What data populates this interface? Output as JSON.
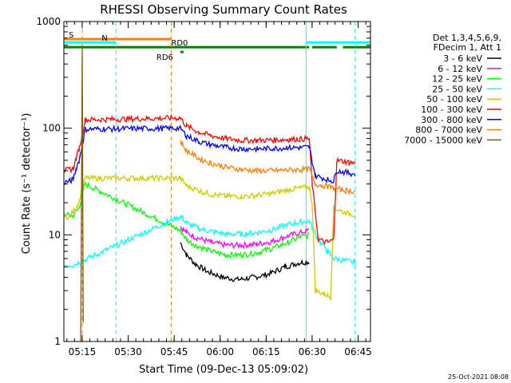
{
  "chart_data": {
    "type": "line",
    "title": "RHESSI Observing Summary Count Rates",
    "xlabel": "Start Time (09-Dec-13 05:09:02)",
    "ylabel": "Count Rate (s⁻¹ detector⁻¹)",
    "yscale": "log",
    "ylim": [
      1,
      1000
    ],
    "xlim_minutes": [
      0,
      100
    ],
    "x_tick_labels": [
      "05:15",
      "05:30",
      "05:45",
      "06:00",
      "06:15",
      "06:30",
      "06:45"
    ],
    "x_tick_minutes": [
      5.97,
      20.97,
      35.97,
      50.97,
      65.97,
      80.97,
      95.97
    ],
    "y_tick_labels": [
      "1",
      "10",
      "100",
      "1000"
    ],
    "y_tick_values": [
      1,
      10,
      100,
      1000
    ],
    "legend_header": [
      "Det 1,3,4,5,6,9,",
      "FDecim 1, Att 1"
    ],
    "legend_position": "right",
    "timestamp": "25-Oct-2021 08:08",
    "series": [
      {
        "name": "3 - 6 keV",
        "color": "#000000",
        "points": [
          [
            38,
            8.5
          ],
          [
            40,
            6.5
          ],
          [
            43,
            5.3
          ],
          [
            47,
            4.5
          ],
          [
            52,
            4.0
          ],
          [
            57,
            3.8
          ],
          [
            62,
            4.0
          ],
          [
            67,
            4.3
          ],
          [
            72,
            5.0
          ],
          [
            77,
            5.5
          ],
          [
            80,
            5.6
          ]
        ]
      },
      {
        "name": "6 - 12 keV",
        "color": "#ff00ff",
        "points": [
          [
            38,
            12
          ],
          [
            40,
            10.5
          ],
          [
            43,
            9.5
          ],
          [
            48,
            8.5
          ],
          [
            53,
            8.0
          ],
          [
            58,
            8.0
          ],
          [
            63,
            8.2
          ],
          [
            68,
            8.7
          ],
          [
            73,
            9.8
          ],
          [
            77,
            10.5
          ],
          [
            80,
            11
          ]
        ]
      },
      {
        "name": "12 - 25 keV",
        "color": "#00ff00",
        "points": [
          [
            0,
            15.5
          ],
          [
            3,
            15
          ],
          [
            5,
            18
          ],
          [
            6,
            24
          ],
          [
            7,
            30
          ],
          [
            38,
            11
          ],
          [
            40,
            9
          ],
          [
            43,
            8
          ],
          [
            48,
            7
          ],
          [
            53,
            6.5
          ],
          [
            58,
            6.5
          ],
          [
            63,
            6.8
          ],
          [
            68,
            7.5
          ],
          [
            73,
            8.5
          ],
          [
            77,
            9.5
          ],
          [
            80,
            10
          ]
        ]
      },
      {
        "name": "25 - 50 keV",
        "color": "#00ffff",
        "points": [
          [
            0,
            5.2
          ],
          [
            3,
            5.2
          ],
          [
            38,
            15
          ],
          [
            40,
            13
          ],
          [
            44,
            11.5
          ],
          [
            48,
            10.8
          ],
          [
            53,
            10.2
          ],
          [
            58,
            10.2
          ],
          [
            63,
            10.5
          ],
          [
            68,
            11.2
          ],
          [
            73,
            12.5
          ],
          [
            77,
            13.2
          ],
          [
            80,
            13.5
          ],
          [
            83,
            9
          ],
          [
            86,
            7
          ],
          [
            88,
            6
          ],
          [
            95,
            5.5
          ]
        ]
      },
      {
        "name": "50 - 100 keV",
        "color": "#cccc00",
        "points": [
          [
            0,
            14.5
          ],
          [
            2,
            15
          ],
          [
            4,
            18
          ],
          [
            5,
            21
          ],
          [
            6,
            27
          ],
          [
            7,
            34
          ],
          [
            38,
            34
          ],
          [
            40,
            29
          ],
          [
            44,
            26
          ],
          [
            48,
            24
          ],
          [
            53,
            23
          ],
          [
            58,
            23
          ],
          [
            63,
            23.5
          ],
          [
            68,
            24.5
          ],
          [
            73,
            26.5
          ],
          [
            77,
            27.5
          ],
          [
            80,
            28
          ],
          [
            81,
            20
          ],
          [
            82,
            3.0
          ],
          [
            85,
            2.8
          ],
          [
            87,
            2.6
          ],
          [
            88,
            18
          ],
          [
            92,
            16
          ],
          [
            95,
            15.5
          ]
        ]
      },
      {
        "name": "100 - 300 keV",
        "color": "#ff0000",
        "points": [
          [
            0,
            40
          ],
          [
            2,
            41
          ],
          [
            3,
            42
          ],
          [
            4,
            52
          ],
          [
            5,
            65
          ],
          [
            6,
            88
          ],
          [
            7,
            120
          ],
          [
            38,
            125
          ],
          [
            40,
            105
          ],
          [
            44,
            92
          ],
          [
            48,
            85
          ],
          [
            53,
            80
          ],
          [
            58,
            77
          ],
          [
            63,
            77
          ],
          [
            68,
            77.5
          ],
          [
            73,
            78.5
          ],
          [
            77,
            79
          ],
          [
            80,
            80
          ],
          [
            81,
            30
          ],
          [
            83,
            9
          ],
          [
            86,
            8.5
          ],
          [
            88,
            9
          ],
          [
            89,
            50
          ],
          [
            93,
            48
          ],
          [
            95,
            47
          ]
        ]
      },
      {
        "name": "300 - 800 keV",
        "color": "#0000ff",
        "points": [
          [
            0,
            31
          ],
          [
            2,
            32
          ],
          [
            3,
            33
          ],
          [
            4,
            42
          ],
          [
            5,
            50
          ],
          [
            6,
            70
          ],
          [
            7,
            98
          ],
          [
            38,
            100
          ],
          [
            40,
            85
          ],
          [
            44,
            75
          ],
          [
            48,
            70
          ],
          [
            53,
            66
          ],
          [
            58,
            64
          ],
          [
            63,
            64
          ],
          [
            68,
            64.5
          ],
          [
            73,
            65.5
          ],
          [
            77,
            66
          ],
          [
            80,
            66.5
          ],
          [
            82,
            36
          ],
          [
            86,
            33
          ],
          [
            88,
            32
          ],
          [
            89,
            40
          ],
          [
            93,
            38
          ],
          [
            95,
            37
          ]
        ]
      },
      {
        "name": "800 - 7000 keV",
        "color": "#ff8000",
        "points": [
          [
            38,
            75
          ],
          [
            40,
            62
          ],
          [
            44,
            52
          ],
          [
            48,
            47
          ],
          [
            53,
            43
          ],
          [
            58,
            41
          ],
          [
            63,
            40
          ],
          [
            68,
            40
          ],
          [
            73,
            40.5
          ],
          [
            77,
            41
          ],
          [
            80,
            41.5
          ],
          [
            82,
            30
          ],
          [
            86,
            28.5
          ],
          [
            88,
            27.5
          ],
          [
            92,
            26
          ],
          [
            95,
            25.5
          ]
        ]
      },
      {
        "name": "7000 - 15000 keV",
        "color": "#8b5a00",
        "points": [
          [
            5.5,
            1
          ],
          [
            6,
            600
          ],
          [
            6.3,
            1.5
          ]
        ]
      }
    ],
    "markers": {
      "vlines": [
        {
          "minute": 6,
          "color": "#ff8000",
          "style": "dashed"
        },
        {
          "minute": 17,
          "color": "#00ffff",
          "style": "dashed"
        },
        {
          "minute": 35,
          "color": "#ff8000",
          "style": "dashed"
        },
        {
          "minute": 79,
          "color": "#00ffff",
          "style": "solid"
        },
        {
          "minute": 95,
          "color": "#00ffff",
          "style": "dashed"
        }
      ],
      "flag_bars": [
        {
          "label": "S",
          "color": "#ff8000",
          "y": 0.945,
          "from": 0,
          "to": 35
        },
        {
          "label": "N",
          "color": "#00ffff",
          "y": 0.935,
          "from": 0,
          "to": 17
        },
        {
          "label": "",
          "color": "#00ffff",
          "y": 0.935,
          "from": 79,
          "to": 100
        },
        {
          "label": "RD0",
          "color": "#008000",
          "y": 0.92,
          "from": 0,
          "to": 80
        },
        {
          "label": "",
          "color": "#008000",
          "y": 0.92,
          "from": 81,
          "to": 89
        },
        {
          "label": "",
          "color": "#008000",
          "y": 0.92,
          "from": 91,
          "to": 100
        },
        {
          "label": "RD6",
          "color": "#008000",
          "y": 0.905,
          "from": 38,
          "to": 39
        }
      ]
    }
  }
}
